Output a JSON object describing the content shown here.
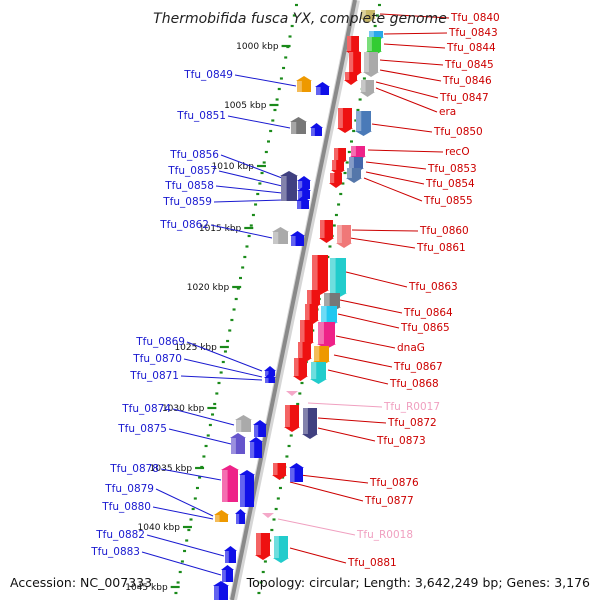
{
  "title": "Thermobifida fusca YX, complete genome",
  "accession": "Accession: NC_007333",
  "topology": "Topology: circular; Length: 3,642,249 bp; Genes: 3,176",
  "colors": {
    "minus_label": "#1a1ad0",
    "plus_label": "#cc0000",
    "rna_label": "#f0a0c0",
    "minus_gene": "#1010e8",
    "plus_gene": "#ee1111",
    "rna_gene": "#f4a8c8",
    "tick": "#1a8a1a",
    "backbone": "#8a8a8a"
  },
  "ticks": [
    "1000 kbp",
    "1005 kbp",
    "1010 kbp",
    "1015 kbp",
    "1020 kbp",
    "1025 kbp",
    "1030 kbp",
    "1035 kbp",
    "1040 kbp",
    "1045 kbp"
  ],
  "minus_labels": [
    "Tfu_0849",
    "Tfu_0851",
    "Tfu_0856",
    "Tfu_0857",
    "Tfu_0858",
    "Tfu_0859",
    "Tfu_0862",
    "Tfu_0869",
    "Tfu_0870",
    "Tfu_0871",
    "Tfu_0874",
    "Tfu_0875",
    "Tfu_0878",
    "Tfu_0879",
    "Tfu_0880",
    "Tfu_0882",
    "Tfu_0883"
  ],
  "plus_labels": [
    "Tfu_0840",
    "Tfu_0843",
    "Tfu_0844",
    "Tfu_0845",
    "Tfu_0846",
    "Tfu_0847",
    "era",
    "Tfu_0850",
    "recO",
    "Tfu_0853",
    "Tfu_0854",
    "Tfu_0855",
    "Tfu_0860",
    "Tfu_0861",
    "Tfu_0863",
    "Tfu_0864",
    "Tfu_0865",
    "dnaG",
    "Tfu_0867",
    "Tfu_0868",
    "Tfu_0872",
    "Tfu_0873",
    "Tfu_0876",
    "Tfu_0877",
    "Tfu_0881"
  ],
  "rna_labels": [
    "Tfu_R0017",
    "Tfu_R0018"
  ]
}
